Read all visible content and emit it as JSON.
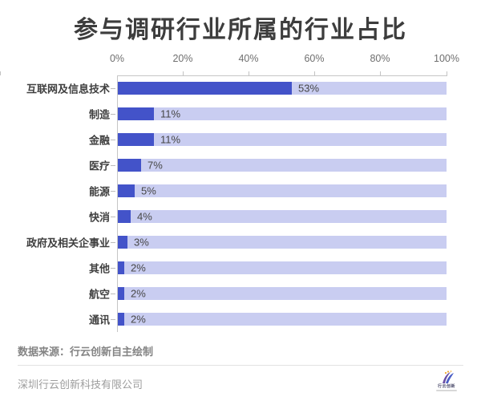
{
  "title": "参与调研行业所属的行业占比",
  "chart_data": {
    "type": "bar",
    "orientation": "horizontal",
    "title": "参与调研行业所属的行业占比",
    "categories": [
      "互联网及信息技术",
      "制造",
      "金融",
      "医疗",
      "能源",
      "快消",
      "政府及相关企事业",
      "其他",
      "航空",
      "通讯"
    ],
    "values": [
      53,
      11,
      11,
      7,
      5,
      4,
      3,
      2,
      2,
      2
    ],
    "value_labels": [
      "53%",
      "11%",
      "11%",
      "7%",
      "5%",
      "4%",
      "3%",
      "2%",
      "2%",
      "2%"
    ],
    "x_ticks": [
      "0%",
      "20%",
      "40%",
      "60%",
      "80%",
      "100%"
    ],
    "xlim": [
      0,
      100
    ],
    "grid": false,
    "legend": "none",
    "bar_color": "#4353c9",
    "track_color": "#c9cdf1"
  },
  "footer": {
    "source": "数据来源：行云创新自主绘制",
    "company": "深圳行云创新科技有限公司"
  },
  "logo": {
    "label": "行云创新"
  }
}
